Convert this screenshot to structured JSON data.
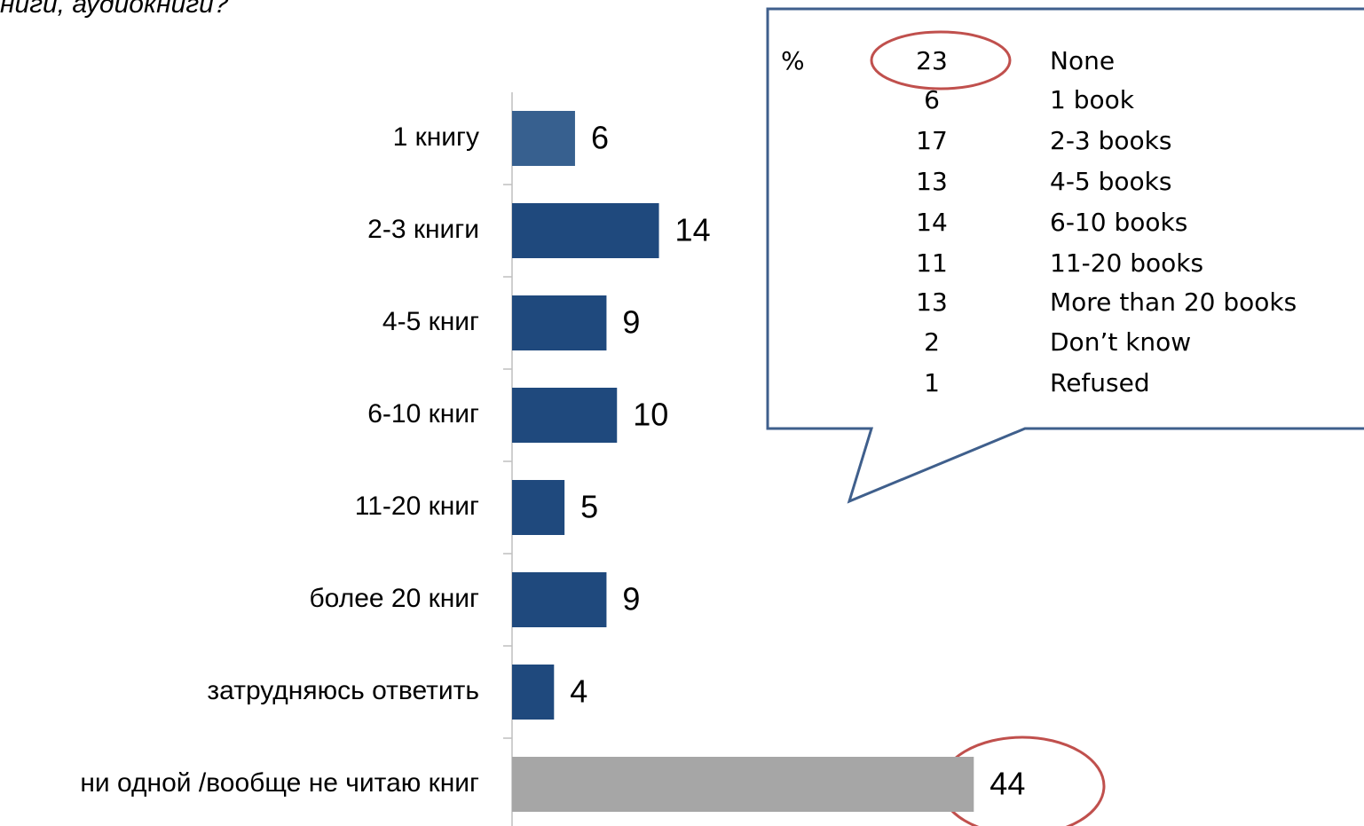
{
  "chart_data": {
    "type": "bar",
    "orientation": "horizontal",
    "subtitle": "ниги, аудиокниги?",
    "categories": [
      "1 книгу",
      "2-3 книги",
      "4-5 книг",
      "6-10 книг",
      "11-20 книг",
      "более 20 книг",
      "затрудняюсь ответить",
      "ни одной /вообще не читаю книг"
    ],
    "values": [
      6,
      14,
      9,
      10,
      5,
      9,
      4,
      44
    ],
    "colors": [
      "#37608f",
      "#1f497d",
      "#1f497d",
      "#1f497d",
      "#1f497d",
      "#1f497d",
      "#1f497d",
      "#a6a6a6"
    ],
    "xlim": [
      0,
      80
    ]
  },
  "callout": {
    "header": "%",
    "rows": [
      [
        23,
        "None"
      ],
      [
        6,
        "1 book"
      ],
      [
        17,
        "2-3 books"
      ],
      [
        13,
        "4-5 books"
      ],
      [
        14,
        "6-10 books"
      ],
      [
        11,
        "11-20 books"
      ],
      [
        13,
        "More than 20 books"
      ],
      [
        2,
        "Don’t know"
      ],
      [
        1,
        "Refused"
      ]
    ]
  }
}
